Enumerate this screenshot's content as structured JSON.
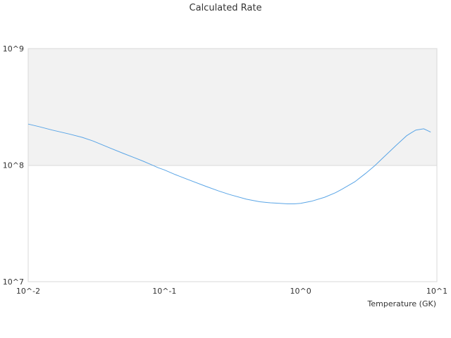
{
  "chart_data": {
    "type": "line",
    "title": "Calculated Rate",
    "xlabel": "Temperature (GK)",
    "ylabel": "",
    "xscale": "log",
    "yscale": "log",
    "xlim": [
      0.01,
      10
    ],
    "ylim": [
      10000000,
      1000000000
    ],
    "x_tick_labels": [
      "10^-2",
      "10^-1",
      "10^0",
      "10^1"
    ],
    "y_tick_labels": [
      "10^7",
      "10^8",
      "10^9"
    ],
    "grid": true,
    "legend": "none",
    "series": [
      {
        "color": "#5aa5e6",
        "x": [
          0.01,
          0.012,
          0.015,
          0.02,
          0.025,
          0.03,
          0.04,
          0.05,
          0.06,
          0.07,
          0.08,
          0.09,
          0.1,
          0.12,
          0.15,
          0.2,
          0.25,
          0.3,
          0.4,
          0.5,
          0.6,
          0.7,
          0.8,
          0.9,
          1.0,
          1.2,
          1.5,
          1.8,
          2.0,
          2.5,
          3.0,
          3.5,
          4.0,
          4.5,
          5.0,
          5.5,
          6.0,
          6.5,
          7.0,
          8.0,
          9.0
        ],
        "y": [
          225000000,
          214000000,
          200000000,
          185000000,
          173000000,
          161000000,
          140000000,
          126000000,
          116000000,
          108000000,
          101000000,
          95000000,
          91000000,
          83000000,
          75000000,
          66000000,
          60000000,
          56000000,
          51000000,
          48500000,
          47500000,
          47000000,
          46500000,
          46500000,
          47000000,
          49000000,
          53000000,
          58000000,
          62000000,
          72000000,
          85000000,
          99000000,
          115000000,
          131000000,
          147000000,
          163000000,
          179000000,
          190000000,
          200000000,
          205000000,
          192000000
        ]
      }
    ]
  }
}
